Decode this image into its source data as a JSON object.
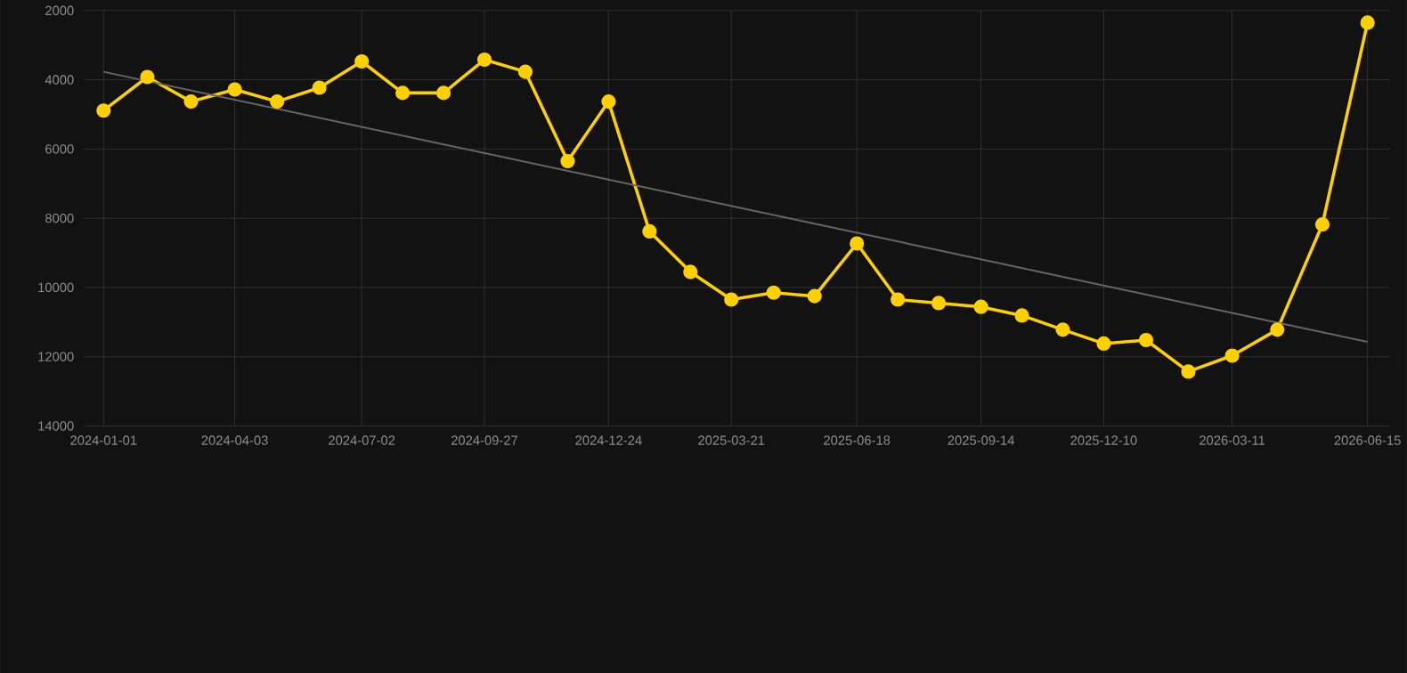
{
  "chart_data": {
    "type": "line",
    "x": [
      "2024-01-01",
      "2024-02-01",
      "2024-03-03",
      "2024-04-03",
      "2024-05-03",
      "2024-06-02",
      "2024-07-02",
      "2024-07-31",
      "2024-08-29",
      "2024-09-27",
      "2024-10-26",
      "2024-11-25",
      "2024-12-24",
      "2025-01-22",
      "2025-02-20",
      "2025-03-21",
      "2025-04-20",
      "2025-05-19",
      "2025-06-18",
      "2025-07-17",
      "2025-08-15",
      "2025-09-14",
      "2025-10-13",
      "2025-11-11",
      "2025-12-10",
      "2026-01-09",
      "2026-02-08",
      "2026-03-11",
      "2026-04-12",
      "2026-05-14",
      "2026-06-15"
    ],
    "series": [
      {
        "color": "#ffd000",
        "marker": "circle",
        "values": [
          4890,
          3920,
          4630,
          4280,
          4630,
          4230,
          3470,
          4380,
          4380,
          3420,
          3770,
          6350,
          4630,
          8380,
          9550,
          10350,
          10150,
          10250,
          8730,
          10350,
          10450,
          10560,
          10810,
          11220,
          11620,
          11520,
          12430,
          11970,
          11220,
          8180,
          2350
        ]
      },
      {
        "type": "line",
        "color": "#666666",
        "marker": "none",
        "x": [
          "2024-01-01",
          "2026-06-15"
        ],
        "values": [
          3770,
          11570
        ]
      }
    ],
    "xlim": [
      "2023-12-18",
      "2026-07-01"
    ],
    "ylim": [
      14000,
      2000
    ],
    "xticks": [
      "2024-01-01",
      "2024-04-03",
      "2024-07-02",
      "2024-09-27",
      "2024-12-24",
      "2025-03-21",
      "2025-06-18",
      "2025-09-14",
      "2025-12-10",
      "2026-03-11",
      "2026-06-15"
    ],
    "yticks": [
      2000,
      4000,
      6000,
      8000,
      10000,
      12000,
      14000
    ],
    "grid": true
  }
}
